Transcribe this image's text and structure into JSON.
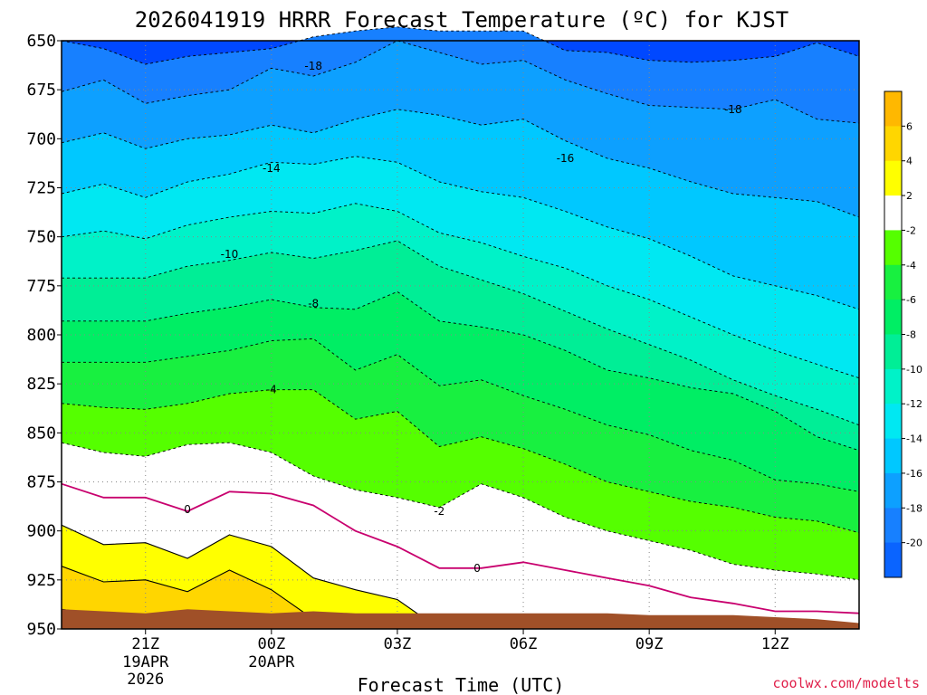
{
  "chart_data": {
    "type": "contour",
    "title": "2026041919 HRRR Forecast Temperature (ºC) for KJST",
    "xlabel": "Forecast Time (UTC)",
    "ylabel": "",
    "credit": "coolwx.com/modelts",
    "x_hours": [
      -2,
      -1,
      0,
      1,
      2,
      3,
      4,
      5,
      6,
      7,
      8,
      9,
      10,
      11,
      12,
      13,
      14,
      15,
      16,
      17
    ],
    "ylim": [
      650,
      950
    ],
    "y_ticks": [
      "650",
      "675",
      "700",
      "725",
      "750",
      "775",
      "800",
      "825",
      "850",
      "875",
      "900",
      "925",
      "950"
    ],
    "x_ticks": [
      {
        "hour": 0,
        "label": "21Z",
        "sub1": "19APR",
        "sub2": "2026"
      },
      {
        "hour": 3,
        "label": "00Z",
        "sub1": "20APR",
        "sub2": ""
      },
      {
        "hour": 6,
        "label": "03Z",
        "sub1": "",
        "sub2": ""
      },
      {
        "hour": 9,
        "label": "06Z",
        "sub1": "",
        "sub2": ""
      },
      {
        "hour": 12,
        "label": "09Z",
        "sub1": "",
        "sub2": ""
      },
      {
        "hour": 15,
        "label": "12Z",
        "sub1": "",
        "sub2": ""
      }
    ],
    "isotherms": [
      {
        "level": -20,
        "p": [
          650,
          654,
          662,
          658,
          656,
          654,
          648,
          645,
          643,
          645,
          645,
          645,
          655,
          656,
          660,
          661,
          660,
          658,
          651,
          658
        ]
      },
      {
        "level": -18,
        "p": [
          676,
          670,
          682,
          678,
          675,
          664,
          668,
          661,
          650,
          656,
          662,
          660,
          670,
          677,
          683,
          684,
          685,
          680,
          690,
          692
        ]
      },
      {
        "level": -16,
        "p": [
          702,
          697,
          705,
          700,
          698,
          693,
          697,
          690,
          685,
          688,
          693,
          690,
          701,
          710,
          715,
          722,
          728,
          730,
          732,
          740
        ]
      },
      {
        "level": -14,
        "p": [
          728,
          723,
          730,
          722,
          718,
          712,
          713,
          709,
          712,
          722,
          727,
          730,
          737,
          745,
          751,
          760,
          770,
          775,
          780,
          787
        ]
      },
      {
        "level": -12,
        "p": [
          750,
          747,
          751,
          744,
          740,
          737,
          738,
          733,
          737,
          748,
          753,
          760,
          766,
          775,
          782,
          791,
          800,
          808,
          815,
          822
        ]
      },
      {
        "level": -10,
        "p": [
          771,
          771,
          771,
          765,
          762,
          758,
          761,
          757,
          752,
          765,
          772,
          779,
          788,
          797,
          805,
          813,
          823,
          831,
          838,
          846
        ]
      },
      {
        "level": -8,
        "p": [
          793,
          793,
          793,
          789,
          786,
          782,
          786,
          787,
          778,
          793,
          796,
          800,
          808,
          818,
          822,
          827,
          830,
          839,
          852,
          859
        ]
      },
      {
        "level": -6,
        "p": [
          814,
          814,
          814,
          811,
          808,
          803,
          802,
          818,
          810,
          826,
          823,
          831,
          838,
          846,
          851,
          859,
          864,
          874,
          876,
          880
        ]
      },
      {
        "level": -4,
        "p": [
          835,
          837,
          838,
          835,
          830,
          828,
          828,
          843,
          839,
          857,
          852,
          858,
          866,
          875,
          880,
          885,
          888,
          893,
          895,
          901
        ]
      },
      {
        "level": -2,
        "p": [
          855,
          860,
          862,
          856,
          855,
          860,
          872,
          879,
          883,
          888,
          876,
          883,
          893,
          900,
          905,
          910,
          917,
          920,
          922,
          925
        ]
      },
      {
        "level": 0,
        "p": [
          876,
          883,
          883,
          890,
          880,
          881,
          887,
          900,
          908,
          919,
          919,
          916,
          920,
          924,
          928,
          934,
          937,
          941,
          941,
          942
        ]
      },
      {
        "level": 2,
        "p": [
          897,
          907,
          906,
          914,
          902,
          908,
          924,
          930,
          935,
          950,
          950,
          950,
          950,
          950,
          950,
          950,
          950,
          950,
          950,
          950
        ]
      },
      {
        "level": 4,
        "p": [
          918,
          926,
          925,
          931,
          920,
          930,
          945,
          950,
          950,
          950,
          950,
          950,
          950,
          950,
          950,
          950,
          950,
          950,
          950,
          950
        ]
      },
      {
        "level": 6,
        "p": [
          940,
          943,
          945,
          945,
          945,
          950,
          950,
          950,
          950,
          950,
          950,
          950,
          950,
          950,
          950,
          950,
          950,
          950,
          950,
          950
        ]
      }
    ],
    "ground_p": [
      940,
      941,
      942,
      940,
      941,
      942,
      941,
      942,
      942,
      942,
      942,
      942,
      942,
      942,
      943,
      943,
      943,
      944,
      945,
      947
    ],
    "contour_labels": [
      {
        "text": "-18",
        "hour": 4.0,
        "p": 663
      },
      {
        "text": "-18",
        "hour": 14.0,
        "p": 685
      },
      {
        "text": "-16",
        "hour": 10.0,
        "p": 710
      },
      {
        "text": "-14",
        "hour": 3.0,
        "p": 715
      },
      {
        "text": "-10",
        "hour": 2.0,
        "p": 759
      },
      {
        "text": "-8",
        "hour": 4.0,
        "p": 784
      },
      {
        "text": "-4",
        "hour": 3.0,
        "p": 828
      },
      {
        "text": "-2",
        "hour": 7.0,
        "p": 890
      },
      {
        "text": "0",
        "hour": 1.0,
        "p": 889
      },
      {
        "text": "0",
        "hour": 7.9,
        "p": 919
      }
    ],
    "colorbar_labels": [
      "6",
      "4",
      "2",
      "-2",
      "-4",
      "-6",
      "-8",
      "-10",
      "-12",
      "-14",
      "-16",
      "-18",
      "-20"
    ],
    "fill_colors": {
      "-22": "#0048ff",
      "-20": "#0a64ff",
      "-18": "#1780ff",
      "-16": "#0da0ff",
      "-14": "#00c8ff",
      "-12": "#00e8f2",
      "-10": "#00f2c8",
      "-8": "#00ee96",
      "-6": "#00ee64",
      "-4": "#18f040",
      "-2": "#55ff00",
      "0": "#ffffff",
      "2": "#ffffff",
      "4": "#ffff00",
      "6": "#ffd600",
      "8": "#ffb800"
    },
    "ground_color": "#a05028",
    "freezing_line_color": "#c8006e",
    "grid": true
  }
}
